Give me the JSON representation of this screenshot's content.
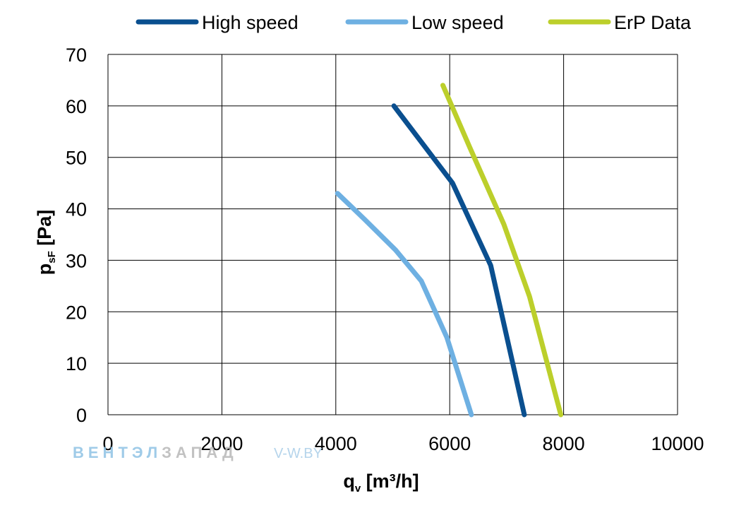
{
  "chart_data": {
    "type": "line",
    "title": "",
    "xlabel_main": "q",
    "xlabel_sub": "v",
    "xlabel_rest": " [m³/h]",
    "ylabel_main": "p",
    "ylabel_sub": "sF",
    "ylabel_rest": " [Pa]",
    "xlim": [
      0,
      10000
    ],
    "ylim": [
      0,
      70
    ],
    "xticks": [
      0,
      2000,
      4000,
      6000,
      8000,
      10000
    ],
    "yticks": [
      0,
      10,
      20,
      30,
      40,
      50,
      60,
      70
    ],
    "xtick_labels": [
      "0",
      "2000",
      "4000",
      "6000",
      "8000",
      "10000"
    ],
    "ytick_labels": [
      "0",
      "10",
      "20",
      "30",
      "40",
      "50",
      "60",
      "70"
    ],
    "grid": true,
    "legend_position": "top",
    "series": [
      {
        "name": "High speed",
        "color": "#0a4f8f",
        "points": [
          [
            5020,
            60
          ],
          [
            5500,
            53
          ],
          [
            6050,
            45
          ],
          [
            6720,
            29
          ],
          [
            7310,
            0
          ]
        ]
      },
      {
        "name": "Low speed",
        "color": "#6eb0e2",
        "points": [
          [
            4030,
            43
          ],
          [
            4500,
            38
          ],
          [
            5050,
            32
          ],
          [
            5500,
            26
          ],
          [
            5950,
            15
          ],
          [
            6380,
            0
          ]
        ]
      },
      {
        "name": "ErP Data",
        "color": "#bccf2b",
        "points": [
          [
            5880,
            64
          ],
          [
            6350,
            52
          ],
          [
            6950,
            37
          ],
          [
            7400,
            23
          ],
          [
            7950,
            0
          ]
        ]
      }
    ]
  },
  "watermark": {
    "text_part1": "ВЕНТЭЛ",
    "text_part2": "ЗАПАД",
    "url": "V-W.BY",
    "color1": "#8fc3e4",
    "color2": "#b8b8b8"
  }
}
